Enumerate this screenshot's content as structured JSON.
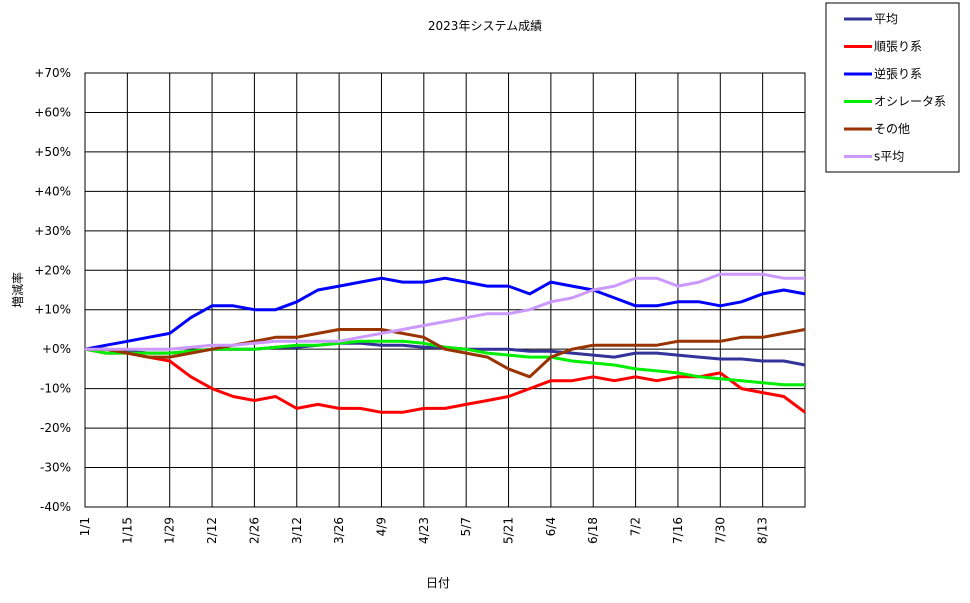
{
  "chart_data": {
    "type": "line",
    "title": "2023年システム成績",
    "x_label": "日付",
    "y_label": "増減率",
    "categories": [
      "1/1",
      null,
      "1/15",
      null,
      "1/29",
      null,
      "2/12",
      null,
      "2/26",
      null,
      "3/12",
      null,
      "3/26",
      null,
      "4/9",
      null,
      "4/23",
      null,
      "5/7",
      null,
      "5/21",
      null,
      "6/4",
      null,
      "6/18",
      null,
      "7/2",
      null,
      "7/16",
      null,
      "7/30",
      null,
      "8/13",
      null,
      null
    ],
    "ylim": [
      -40,
      70
    ],
    "yticks": [
      {
        "value": -40,
        "label": "-40%"
      },
      {
        "value": -30,
        "label": "-30%"
      },
      {
        "value": -20,
        "label": "-20%"
      },
      {
        "value": -10,
        "label": "-10%"
      },
      {
        "value": 0,
        "label": "+0%"
      },
      {
        "value": 10,
        "label": "+10%"
      },
      {
        "value": 20,
        "label": "+20%"
      },
      {
        "value": 30,
        "label": "+30%"
      },
      {
        "value": 40,
        "label": "+40%"
      },
      {
        "value": 50,
        "label": "+50%"
      },
      {
        "value": 60,
        "label": "+60%"
      },
      {
        "value": 70,
        "label": "+70%"
      }
    ],
    "grid": true,
    "legend": "outside-top-right",
    "series": [
      {
        "name": "平均",
        "color": "#333399",
        "values": [
          0,
          0,
          -0.5,
          -1,
          -1,
          -0.5,
          0,
          0,
          0,
          0.5,
          0.5,
          1,
          1.5,
          1.5,
          1,
          1,
          0.5,
          0.5,
          0,
          0,
          0,
          -0.5,
          -0.5,
          -1,
          -1.5,
          -2,
          -1,
          -1,
          -1.5,
          -2,
          -2.5,
          -2.5,
          -3,
          -3,
          -4
        ]
      },
      {
        "name": "順張り系",
        "color": "#ff0000",
        "values": [
          0,
          -1,
          -1,
          -2,
          -3,
          -7,
          -10,
          -12,
          -13,
          -12,
          -15,
          -14,
          -15,
          -15,
          -16,
          -16,
          -15,
          -15,
          -14,
          -13,
          -12,
          -10,
          -8,
          -8,
          -7,
          -8,
          -7,
          -8,
          -7,
          -7,
          -6,
          -10,
          -11,
          -12,
          -16
        ]
      },
      {
        "name": "逆張り系",
        "color": "#0000ff",
        "values": [
          0,
          1,
          2,
          3,
          4,
          8,
          11,
          11,
          10,
          10,
          12,
          15,
          16,
          17,
          18,
          17,
          17,
          18,
          17,
          16,
          16,
          14,
          17,
          16,
          15,
          13,
          11,
          11,
          12,
          12,
          11,
          12,
          14,
          15,
          14
        ]
      },
      {
        "name": "オシレータ系",
        "color": "#00ee00",
        "values": [
          0,
          -1,
          -1,
          -1,
          -1,
          -0.5,
          0,
          0,
          0,
          0.5,
          1,
          1,
          1.5,
          2,
          2,
          2,
          1.5,
          0.5,
          0,
          -1,
          -1.5,
          -2,
          -2,
          -3,
          -3.5,
          -4,
          -5,
          -5.5,
          -6,
          -7,
          -7.5,
          -8,
          -8.5,
          -9,
          -9
        ]
      },
      {
        "name": "その他",
        "color": "#993300",
        "values": [
          0,
          0,
          -1,
          -2,
          -2,
          -1,
          0,
          1,
          2,
          3,
          3,
          4,
          5,
          5,
          5,
          4,
          3,
          0,
          -1,
          -2,
          -5,
          -7,
          -2,
          0,
          1,
          1,
          1,
          1,
          2,
          2,
          2,
          3,
          3,
          4,
          5
        ]
      },
      {
        "name": "s平均",
        "color": "#cc99ff",
        "values": [
          0,
          0,
          0,
          0,
          0,
          0.5,
          1,
          1,
          1.5,
          2,
          2,
          2,
          2,
          3,
          4,
          5,
          6,
          7,
          8,
          9,
          9,
          10,
          12,
          13,
          15,
          16,
          18,
          18,
          16,
          17,
          19,
          19,
          19,
          18,
          18
        ]
      }
    ]
  }
}
